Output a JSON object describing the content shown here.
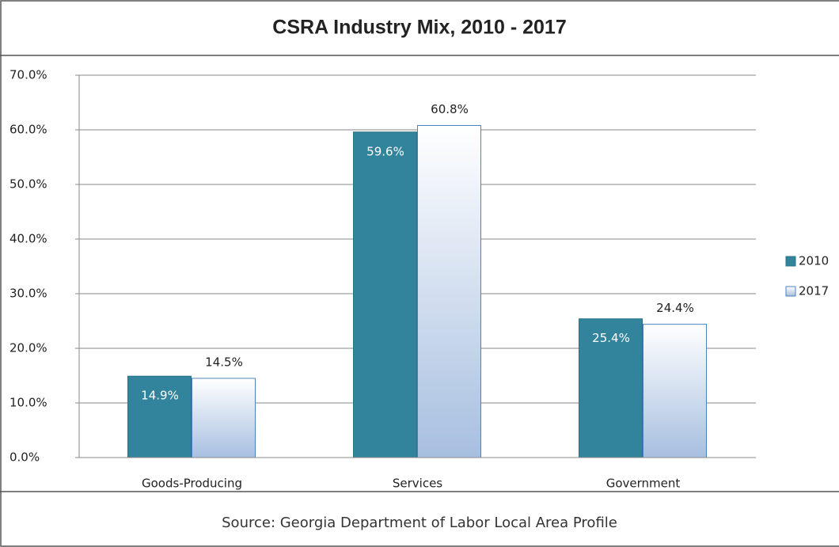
{
  "chart_data": {
    "type": "bar",
    "title": "CSRA Industry Mix, 2010 - 2017",
    "categories": [
      "Goods-Producing",
      "Services",
      "Government"
    ],
    "series": [
      {
        "name": "2010",
        "color": "#31849b",
        "values": [
          14.9,
          59.6,
          25.4
        ],
        "value_labels": [
          "14.9%",
          "59.6%",
          "25.4%"
        ]
      },
      {
        "name": "2017",
        "color": "#b9cce8",
        "values": [
          14.5,
          60.8,
          24.4
        ],
        "value_labels": [
          "14.5%",
          "60.8%",
          "24.4%"
        ]
      }
    ],
    "ylim": [
      0,
      70
    ],
    "yticks": [
      {
        "value": 0,
        "label": "0.0%"
      },
      {
        "value": 10,
        "label": "10.0%"
      },
      {
        "value": 20,
        "label": "20.0%"
      },
      {
        "value": 30,
        "label": "30.0%"
      },
      {
        "value": 40,
        "label": "40.0%"
      },
      {
        "value": 50,
        "label": "50.0%"
      },
      {
        "value": 60,
        "label": "60.0%"
      },
      {
        "value": 70,
        "label": "70.0%"
      }
    ],
    "grid": true,
    "legend": "right",
    "source": "Source: Georgia Department of Labor Local Area Profile"
  }
}
